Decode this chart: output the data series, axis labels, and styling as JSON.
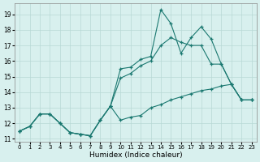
{
  "xlabel": "Humidex (Indice chaleur)",
  "background_color": "#d8f0ee",
  "grid_color": "#b8d8d5",
  "line_color": "#1a7870",
  "xlim": [
    -0.5,
    23.5
  ],
  "ylim": [
    10.8,
    19.7
  ],
  "xticks": [
    0,
    1,
    2,
    3,
    4,
    5,
    6,
    7,
    8,
    9,
    10,
    11,
    12,
    13,
    14,
    15,
    16,
    17,
    18,
    19,
    20,
    21,
    22,
    23
  ],
  "yticks": [
    11,
    12,
    13,
    14,
    15,
    16,
    17,
    18,
    19
  ],
  "series1_y": [
    11.5,
    11.8,
    12.6,
    12.6,
    12.0,
    11.4,
    11.3,
    11.2,
    12.2,
    13.1,
    12.2,
    12.4,
    12.5,
    13.0,
    13.2,
    13.5,
    13.7,
    13.9,
    14.1,
    14.2,
    14.4,
    14.5,
    13.5,
    13.5
  ],
  "series2_y": [
    11.5,
    11.8,
    12.6,
    12.6,
    12.0,
    11.4,
    11.3,
    11.2,
    12.2,
    13.1,
    14.9,
    15.2,
    15.7,
    16.0,
    17.0,
    17.5,
    17.2,
    17.0,
    17.0,
    15.8,
    15.8,
    14.5,
    13.5,
    13.5
  ],
  "series3_y": [
    11.5,
    11.8,
    12.6,
    12.6,
    12.0,
    11.4,
    11.3,
    11.2,
    12.2,
    13.1,
    15.5,
    15.6,
    16.1,
    16.3,
    19.3,
    18.4,
    16.5,
    17.5,
    18.2,
    17.4,
    15.8,
    14.5,
    13.5,
    13.5
  ]
}
